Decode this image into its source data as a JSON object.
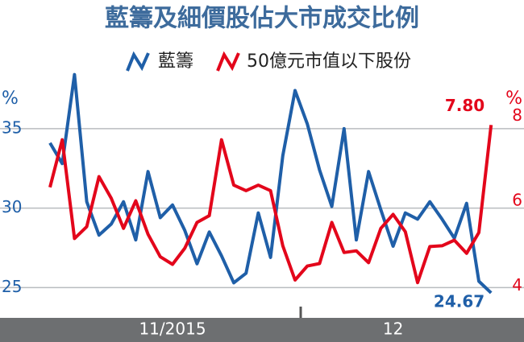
{
  "chart_data": {
    "type": "line",
    "title": "藍籌及細價股佔大市成交比例",
    "y_label": "%",
    "y2_label": "%",
    "categories": [
      null,
      null,
      null,
      null,
      null,
      null,
      null,
      null,
      null,
      null,
      "11/2015",
      null,
      null,
      null,
      null,
      null,
      null,
      null,
      null,
      null,
      null,
      null,
      null,
      null,
      null,
      null,
      null,
      null,
      "12",
      null,
      null,
      null,
      null,
      null,
      null,
      null,
      null
    ],
    "ylim": [
      23.5,
      39.5
    ],
    "yticks": [
      25,
      30,
      35
    ],
    "y2lim": [
      3.4,
      9.4
    ],
    "y2ticks": [
      4,
      6,
      8
    ],
    "grid": true,
    "series": [
      {
        "name": "藍籌",
        "color": "#1f5fa8",
        "values": [
          34.1,
          32.8,
          38.4,
          30.4,
          28.3,
          29.0,
          30.4,
          28.0,
          32.3,
          29.4,
          30.2,
          28.6,
          26.5,
          28.5,
          27.0,
          25.3,
          25.9,
          29.7,
          26.9,
          33.3,
          37.4,
          35.3,
          32.4,
          30.1,
          35.0,
          28.0,
          32.3,
          29.9,
          27.6,
          29.7,
          29.3,
          30.4,
          29.3,
          28.1,
          30.3,
          25.4,
          24.67
        ],
        "value_labels": [
          null,
          null,
          null,
          null,
          null,
          null,
          null,
          null,
          null,
          null,
          null,
          null,
          null,
          null,
          null,
          null,
          null,
          null,
          null,
          null,
          null,
          null,
          null,
          null,
          null,
          null,
          null,
          null,
          null,
          null,
          null,
          null,
          null,
          null,
          null,
          null,
          "24.67"
        ]
      },
      {
        "name": "50億元市值以下股份",
        "color": "#e3061b",
        "axis": "y2",
        "values": [
          6.33,
          7.45,
          5.12,
          5.4,
          6.58,
          6.07,
          5.36,
          6.01,
          5.22,
          4.69,
          4.51,
          4.89,
          5.5,
          5.66,
          7.45,
          6.38,
          6.25,
          6.38,
          6.25,
          4.95,
          4.14,
          4.47,
          4.53,
          5.5,
          4.79,
          4.83,
          4.55,
          5.36,
          5.69,
          5.28,
          4.08,
          4.93,
          4.95,
          5.08,
          4.77,
          5.26,
          7.8
        ],
        "value_labels": [
          null,
          null,
          null,
          null,
          null,
          null,
          null,
          null,
          null,
          null,
          null,
          null,
          null,
          null,
          null,
          null,
          null,
          null,
          null,
          null,
          null,
          null,
          null,
          null,
          null,
          null,
          null,
          null,
          null,
          null,
          null,
          null,
          null,
          null,
          null,
          null,
          "7.80"
        ]
      }
    ]
  }
}
